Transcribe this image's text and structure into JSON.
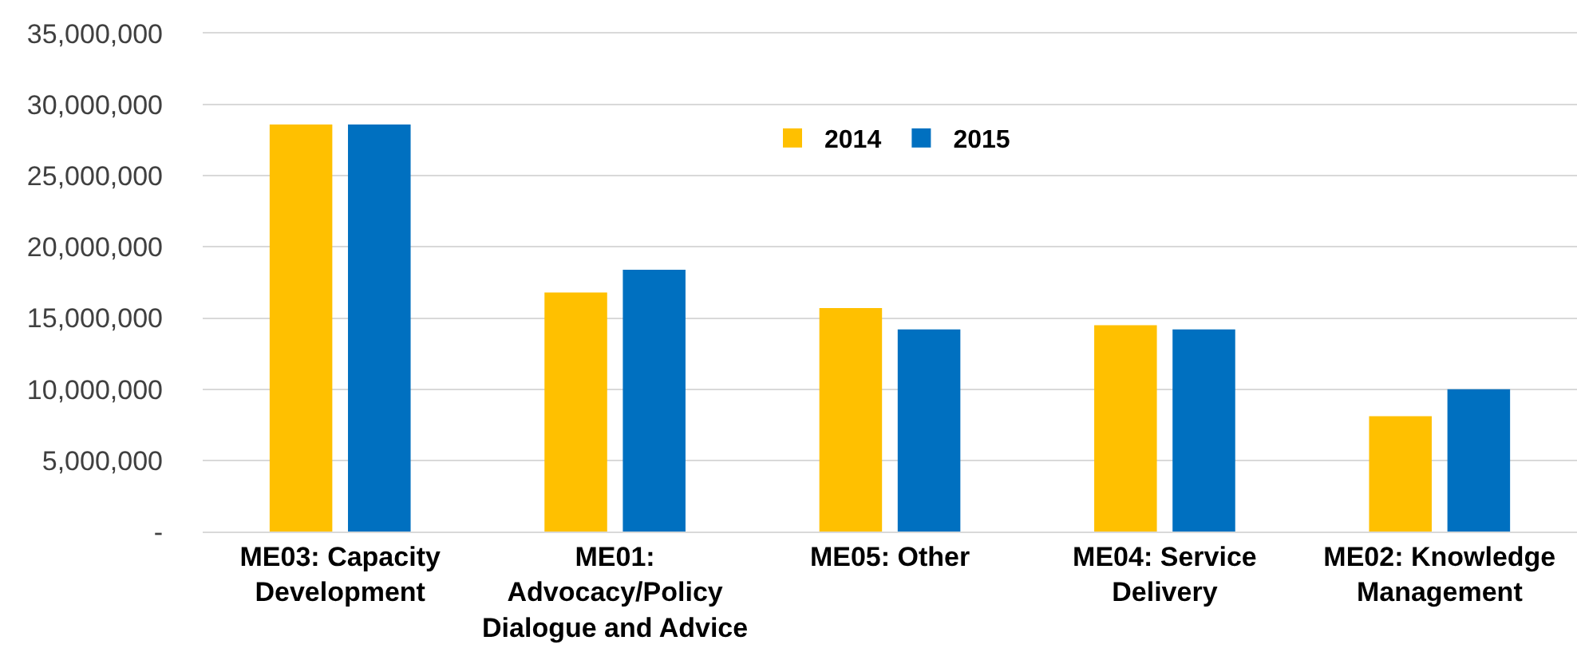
{
  "chart_data": {
    "type": "bar",
    "categories": [
      "ME03: Capacity Development",
      "ME01: Advocacy/Policy Dialogue and Advice",
      "ME05: Other",
      "ME04: Service Delivery",
      "ME02: Knowledge Management"
    ],
    "series": [
      {
        "name": "2014",
        "color": "#ffc000",
        "values": [
          28600000,
          16800000,
          15700000,
          14500000,
          8100000
        ]
      },
      {
        "name": "2015",
        "color": "#0070c0",
        "values": [
          28600000,
          18400000,
          14200000,
          14200000,
          10000000
        ]
      }
    ],
    "ylim": [
      0,
      35000000
    ],
    "yticks": [
      {
        "value": 0,
        "label": "-"
      },
      {
        "value": 5000000,
        "label": "5,000,000"
      },
      {
        "value": 10000000,
        "label": "10,000,000"
      },
      {
        "value": 15000000,
        "label": "15,000,000"
      },
      {
        "value": 20000000,
        "label": "20,000,000"
      },
      {
        "value": 25000000,
        "label": "25,000,000"
      },
      {
        "value": 30000000,
        "label": "30,000,000"
      },
      {
        "value": 35000000,
        "label": "35,000,000"
      }
    ],
    "grid": "y",
    "legend": "top"
  }
}
